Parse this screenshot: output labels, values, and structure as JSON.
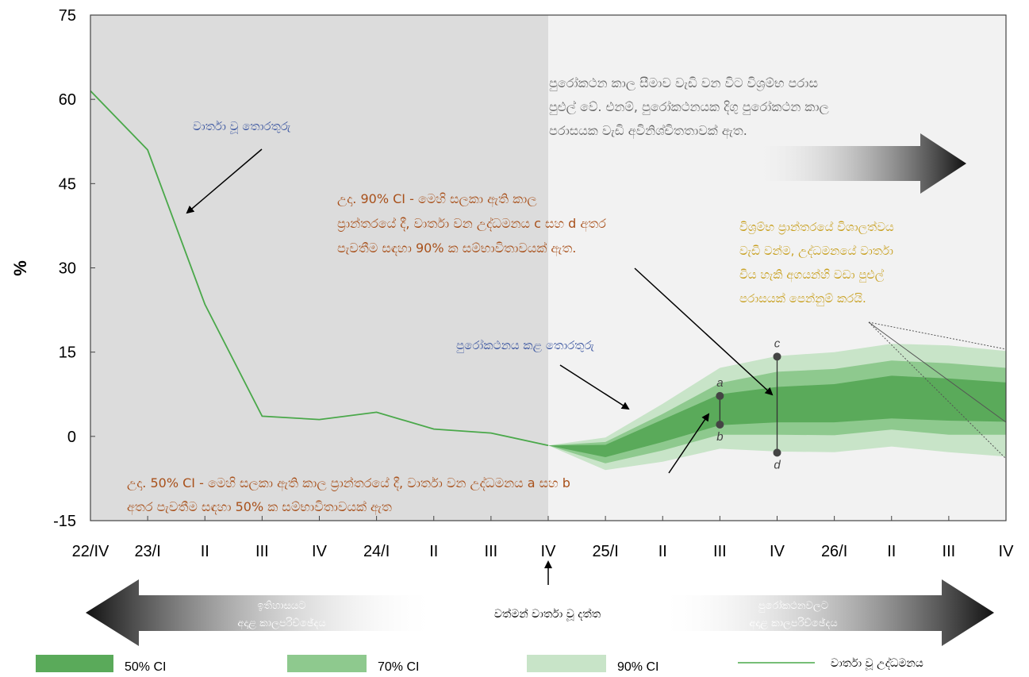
{
  "chart_data": {
    "type": "area",
    "ylabel": "%",
    "ylim": [
      -15,
      75
    ],
    "yticks": [
      -15,
      0,
      15,
      30,
      45,
      60,
      75
    ],
    "categories": [
      "22/IV",
      "23/I",
      "II",
      "III",
      "IV",
      "24/I",
      "II",
      "III",
      "IV",
      "25/I",
      "II",
      "III",
      "IV",
      "26/I",
      "II",
      "III",
      "IV"
    ],
    "grid": false,
    "legend_position": "bottom",
    "actual_inflation": {
      "name": "වාර්තා වූ උද්ධමනය",
      "values": [
        61.5,
        51,
        23.5,
        3.6,
        3,
        4.3,
        1.3,
        0.6,
        -1.6
      ]
    },
    "projection_start_index": 8,
    "projection_end_index": 16,
    "fan": {
      "x_index": [
        8,
        9,
        10,
        11,
        12,
        13,
        14,
        15,
        16
      ],
      "ci90_upper": [
        -1.6,
        -0.2,
        5.8,
        12.2,
        14.3,
        15,
        16.5,
        16.2,
        15.2
      ],
      "ci70_upper": [
        -1.6,
        -1,
        4,
        9.5,
        11.5,
        12,
        13.5,
        13,
        12.2
      ],
      "ci50_upper": [
        -1.6,
        -1.5,
        3,
        7.5,
        8.8,
        9.3,
        10.8,
        10.3,
        9.6
      ],
      "ci50_lower": [
        -1.6,
        -3.7,
        -1,
        2,
        2.5,
        2.5,
        3.2,
        2.8,
        2.6
      ],
      "ci70_lower": [
        -1.6,
        -4.8,
        -2.5,
        0.3,
        0.3,
        0.2,
        1.2,
        0.3,
        0.3
      ],
      "ci90_lower": [
        -1.6,
        -6,
        -4.5,
        -2.2,
        -2.7,
        -2.8,
        -1.8,
        -2.8,
        -3.6
      ]
    },
    "markers": {
      "a": {
        "x_index": 11,
        "y": 7.2
      },
      "b": {
        "x_index": 11,
        "y": 2.1
      },
      "c": {
        "x_index": 12,
        "y": 14.2
      },
      "d": {
        "x_index": 12,
        "y": -2.9
      }
    },
    "colors": {
      "history_bg": "#dcdcdc",
      "projection_bg": "#f2f2f2",
      "ci50": "#5aaa5a",
      "ci70": "#8ec98e",
      "ci90": "#c8e4c8",
      "actual_line": "#4aa84a",
      "annotation_blue": "#3a55a0",
      "annotation_brown": "#a8501a",
      "annotation_gold": "#c8a020",
      "annotation_gray": "#666666"
    }
  },
  "annotations": {
    "reported_info": "වාර්තා වූ තොරතුරු",
    "forecast_info": "පුරෝකථනය කළ තොරතුරු",
    "horizon_text": [
      "පුරෝකථන කාල සීමාව වැඩි වන විට විශ්‍රම්භ පරාස",
      "පුළුල් වේ. එනම්, පුරෝකථනයක දිගු පුරෝකථන කාල",
      "පරාසයක වැඩි අවිනිශ්චිතතාවක් ඇත."
    ],
    "ci90_example": [
      "උදා. 90% CI - මෙහි සලකා ඇති කාල",
      "ප්‍රාන්තරයේ දී, වාර්තා වන  උද්ධමනය c සහ d අතර",
      "පැවතීම සඳහා 90% ක සම්භාවිතාවයක් ඇත."
    ],
    "width_text": [
      "විශ්‍රම්භ ප්‍රාන්තරයේ විශාලත්වය",
      "වැඩි වන්ම, උද්ධමනයේ වාර්තා",
      "විය හැකි අගයන්හි වඩා පුළුල්",
      "පරාසයක් පෙන්නුම් කරයි."
    ],
    "ci50_example": [
      "උදා. 50% CI - මෙහි සලකා ඇති කාල ප්‍රාන්තරයේ දී, වාර්තා වන උද්ධමනය a සහ b",
      "අතර පැවතීම සඳහා 50% ක සම්භාවිතාවයක් ඇත"
    ]
  },
  "bottom": {
    "history_arrow": [
      "ඉතිහාසයට",
      "අදාළ කාලපරිච්ඡේදය"
    ],
    "current_data": "වත්මන් වාර්තා වූ දත්ත",
    "projection_arrow": [
      "පුරෝකථනවලට",
      "අදාළ කාලපරිච්ඡේදය"
    ]
  },
  "legend": {
    "ci50": "50% CI",
    "ci70": "70% CI",
    "ci90": "90% CI",
    "actual": "වාර්තා වූ උද්ධමනය"
  }
}
